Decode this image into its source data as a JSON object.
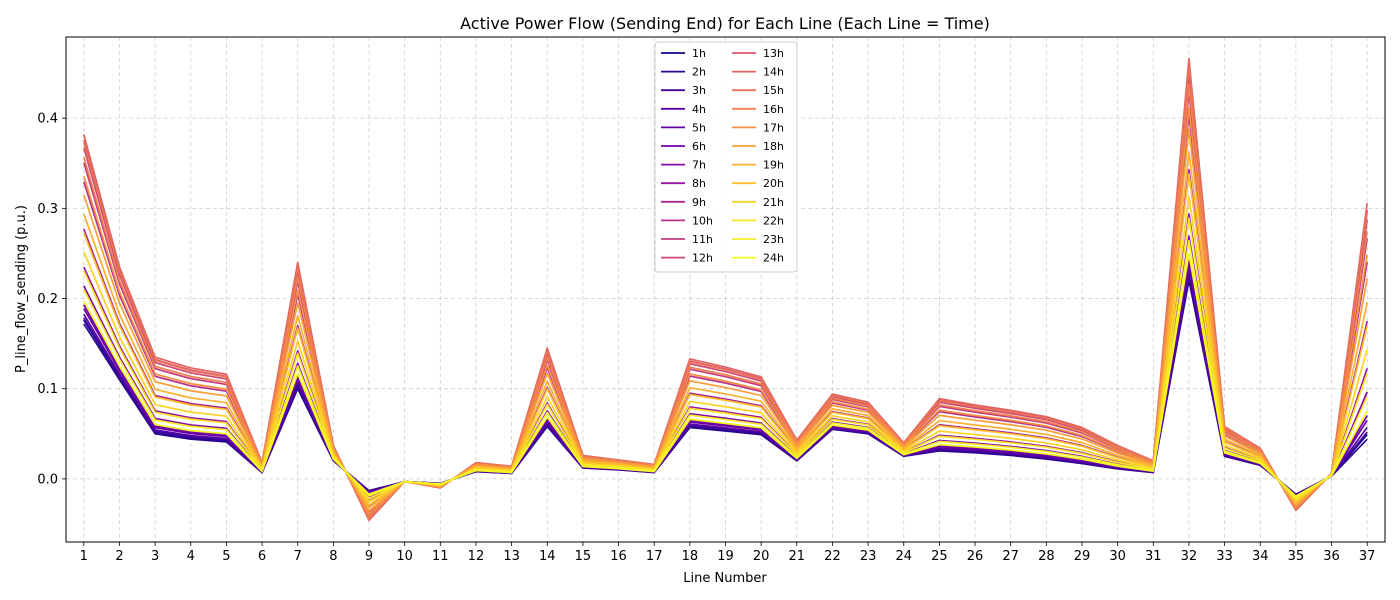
{
  "chart_data": {
    "type": "line",
    "title": "Active Power Flow (Sending End) for Each Line (Each Line = Time)",
    "xlabel": "Line Number",
    "ylabel": "P_line_flow_sending (p.u.)",
    "x": [
      1,
      2,
      3,
      4,
      5,
      6,
      7,
      8,
      9,
      10,
      11,
      12,
      13,
      14,
      15,
      16,
      17,
      18,
      19,
      20,
      21,
      22,
      23,
      24,
      25,
      26,
      27,
      28,
      29,
      30,
      31,
      32,
      33,
      34,
      35,
      36,
      37
    ],
    "xlim": [
      0.5,
      37.5
    ],
    "ylim": [
      -0.07,
      0.49
    ],
    "yticks": [
      0.0,
      0.1,
      0.2,
      0.3,
      0.4
    ],
    "ytick_labels": [
      "0.0",
      "0.1",
      "0.2",
      "0.3",
      "0.4"
    ],
    "grid": true,
    "legend_placement": "top-center",
    "legend_columns": 2,
    "colormap": "plasma",
    "base_profile": [
      0.172,
      0.11,
      0.05,
      0.044,
      0.041,
      0.007,
      0.1,
      0.02,
      -0.013,
      -0.003,
      -0.005,
      0.008,
      0.006,
      0.058,
      0.012,
      0.01,
      0.007,
      0.057,
      0.053,
      0.049,
      0.02,
      0.055,
      0.05,
      0.025,
      0.031,
      0.029,
      0.026,
      0.022,
      0.017,
      0.011,
      0.007,
      0.22,
      0.025,
      0.015,
      -0.017,
      0.003,
      0.044
    ],
    "peak_profile": [
      0.382,
      0.235,
      0.135,
      0.123,
      0.116,
      0.018,
      0.24,
      0.037,
      -0.046,
      -0.003,
      -0.01,
      0.018,
      0.014,
      0.145,
      0.026,
      0.021,
      0.016,
      0.133,
      0.124,
      0.113,
      0.043,
      0.094,
      0.085,
      0.04,
      0.089,
      0.082,
      0.076,
      0.069,
      0.057,
      0.037,
      0.02,
      0.466,
      0.058,
      0.034,
      -0.035,
      0.006,
      0.306
    ],
    "series": [
      {
        "name": "1h",
        "color": "#0d0887",
        "scale": 0.02
      },
      {
        "name": "2h",
        "color": "#2c0594",
        "scale": 0.0
      },
      {
        "name": "3h",
        "color": "#41049d",
        "scale": 0.03
      },
      {
        "name": "4h",
        "color": "#5402a3",
        "scale": 0.05
      },
      {
        "name": "5h",
        "color": "#6600a7",
        "scale": 0.08
      },
      {
        "name": "6h",
        "color": "#7701a8",
        "scale": 0.1
      },
      {
        "name": "7h",
        "color": "#8909a6",
        "scale": 0.2
      },
      {
        "name": "8h",
        "color": "#9a169f",
        "scale": 0.3
      },
      {
        "name": "9h",
        "color": "#aa2395",
        "scale": 0.5
      },
      {
        "name": "10h",
        "color": "#b6308b",
        "scale": 0.75
      },
      {
        "name": "11h",
        "color": "#c33d80",
        "scale": 0.85
      },
      {
        "name": "12h",
        "color": "#cf4a75",
        "scale": 0.93
      },
      {
        "name": "13h",
        "color": "#d8576b",
        "scale": 0.97
      },
      {
        "name": "14h",
        "color": "#e16462",
        "scale": 1.0
      },
      {
        "name": "15h",
        "color": "#e97257",
        "scale": 0.96
      },
      {
        "name": "16h",
        "color": "#f0804e",
        "scale": 0.88
      },
      {
        "name": "17h",
        "color": "#f69044",
        "scale": 0.78
      },
      {
        "name": "18h",
        "color": "#f89f3a",
        "scale": 0.68
      },
      {
        "name": "19h",
        "color": "#fbb032",
        "scale": 0.58
      },
      {
        "name": "20h",
        "color": "#fcbf2a",
        "scale": 0.48
      },
      {
        "name": "21h",
        "color": "#fcd225",
        "scale": 0.38
      },
      {
        "name": "22h",
        "color": "#f9e225",
        "scale": 0.28
      },
      {
        "name": "23h",
        "color": "#f3f027",
        "scale": 0.18
      },
      {
        "name": "24h",
        "color": "#f0f921",
        "scale": 0.12
      }
    ]
  }
}
